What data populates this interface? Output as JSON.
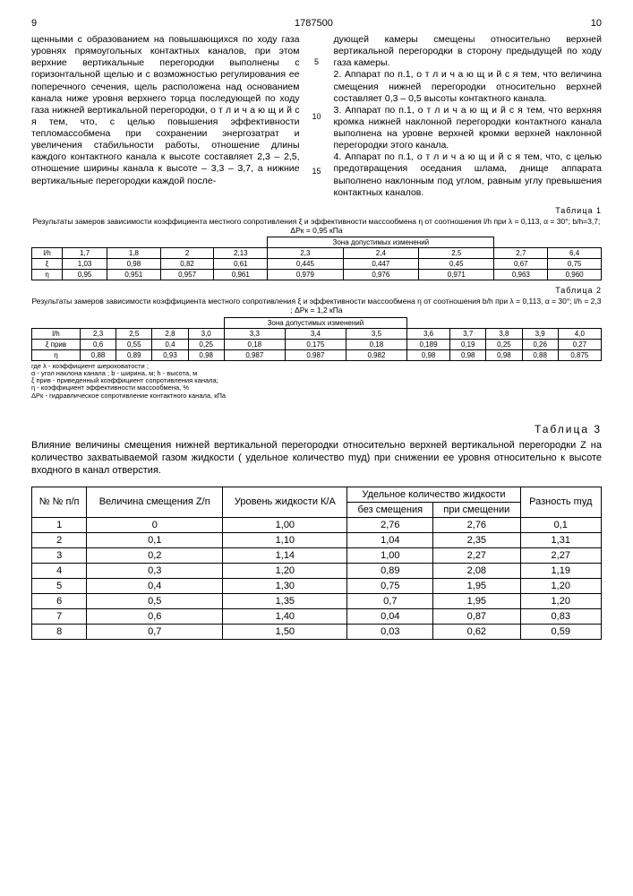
{
  "header": {
    "left_page": "9",
    "doc_num": "1787500",
    "right_page": "10"
  },
  "left_col_text": "щенными с образованием на повышающихся по ходу газа уровнях прямоугольных контактных каналов, при этом верхние вертикальные перегородки выполнены с горизонтальной щелью и с возможностью регулирования ее поперечного сечения, щель расположена над основанием канала ниже уровня верхнего торца последующей по ходу газа нижней вертикальной перегородки, о т л и ч а ю щ и й с я тем, что, с целью повышения эффективности тепломассобмена при сохранении энергозатрат и увеличения стабильности работы, отношение длины каждого контактного канала к высоте составляет 2,3 – 2,5, отношение ширины канала к высоте – 3,3 – 3,7, а нижние вертикальные перегородки каждой после-",
  "right_col_paras": [
    "дующей камеры смещены относительно верхней вертикальной перегородки в сторону предыдущей по ходу газа камеры.",
    "2. Аппарат по п.1, о т л и ч а ю щ и й с я тем, что величина смещения нижней перегородки относительно верхней составляет 0,3 – 0,5 высоты контактного канала.",
    "3. Аппарат по п.1, о т л и ч а ю щ и й с я тем, что верхняя кромка нижней наклонной перегородки контактного канала выполнена на уровне верхней кромки верхней наклонной перегородки этого канала.",
    "4. Аппарат по п.1, о т л и ч а ю щ и й с я тем, что, с целью предотвращения оседания шлама, днище аппарата выполнено наклонным под углом, равным углу превышения контактных каналов."
  ],
  "line_nums": [
    "5",
    "10",
    "15"
  ],
  "table1": {
    "label": "Таблица 1",
    "caption": "Результаты замеров зависимости коэффициента местного сопротивления ξ и эффективности массообмена η от соотношения l/h при λ = 0,113, α = 30°; b/h=3,7; ΔPк = 0,95 кПа",
    "zone_label": "Зона допустимых изменений",
    "rows": [
      [
        "l/h",
        "1,7",
        "1,8",
        "2",
        "2,13",
        "2,3",
        "2,4",
        "2,5",
        "2,7",
        "6,4"
      ],
      [
        "ξ",
        "1,03",
        "0,98",
        "0,82",
        "0,61",
        "0,445",
        "0,447",
        "0,45",
        "0,67",
        "0,75"
      ],
      [
        "η",
        "0,95",
        "0,951",
        "0,957",
        "0,961",
        "0,979",
        "0,976",
        "0,971",
        "0,963",
        "0,960"
      ]
    ]
  },
  "table2": {
    "label": "Таблица 2",
    "caption": "Результаты замеров зависимости коэффициента местного сопротивления ξ и эффективности массообмена η от соотношения b/h при λ = 0,113, α = 30°; l/h = 2,3 ; ΔPк = 1,2 кПа",
    "zone_label": "Зона допустимых изменений",
    "rows": [
      [
        "l/h",
        "2,3",
        "2,5",
        "2,8",
        "3,0",
        "3,3",
        "3,4",
        "3,5",
        "3,6",
        "3,7",
        "3,8",
        "3,9",
        "4,0"
      ],
      [
        "ξ прив",
        "0,6",
        "0,55",
        "0,4",
        "0,25",
        "0,18",
        "0,175",
        "0,18",
        "0,189",
        "0,19",
        "0,25",
        "0,26",
        "0,27"
      ],
      [
        "η",
        "0,88",
        "0,89",
        "0,93",
        "0,98",
        "0,987",
        "0,987",
        "0,982",
        "0,98",
        "0,98",
        "0,98",
        "0,88",
        "0,875"
      ]
    ],
    "footnotes": [
      "где λ - коэффициент шероховатости ;",
      "α - угол наклона канала ; b - ширина, м; h - высота, м",
      "ξ прив - приведенный коэффициент сопротивления канала;",
      "η - коэффициент эффективности массообмена, %",
      "ΔPк - гидравлическое сопротивление контактного канала, кПа"
    ]
  },
  "table3": {
    "label": "Таблица 3",
    "caption": "Влияние величины смещения нижней вертикальной перегородки относительно верхней вертикальной перегородки Z на количество захватываемой газом жидкости ( удельное количество mуд)    при снижении ее уровня относительно к высоте входного в канал отверстия.",
    "columns": [
      "№ №\nп/п",
      "Величина смещения Z/n",
      "Уровень жидкости К/А",
      "Удельное количество жидкости",
      "Разность mуд"
    ],
    "subcols": [
      "без смещения",
      "при смещении"
    ],
    "rows": [
      [
        "1",
        "0",
        "1,00",
        "2,76",
        "2,76",
        "0,1"
      ],
      [
        "2",
        "0,1",
        "1,10",
        "1,04",
        "2,35",
        "1,31"
      ],
      [
        "3",
        "0,2",
        "1,14",
        "1,00",
        "2,27",
        "2,27"
      ],
      [
        "4",
        "0,3",
        "1,20",
        "0,89",
        "2,08",
        "1,19"
      ],
      [
        "5",
        "0,4",
        "1,30",
        "0,75",
        "1,95",
        "1,20"
      ],
      [
        "6",
        "0,5",
        "1,35",
        "0,7",
        "1,95",
        "1,20"
      ],
      [
        "7",
        "0,6",
        "1,40",
        "0,04",
        "0,87",
        "0,83"
      ],
      [
        "8",
        "0,7",
        "1,50",
        "0,03",
        "0,62",
        "0,59"
      ]
    ]
  }
}
